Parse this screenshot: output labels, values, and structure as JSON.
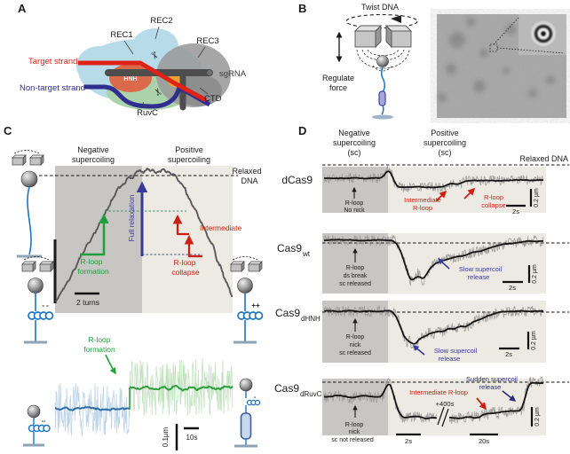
{
  "palette": {
    "region_dark": "#c7c6c3",
    "region_light": "#eceae2",
    "trace_gray": "#59595b",
    "trace_raw": "#9c9c9c",
    "trace_black": "#141414",
    "strand_red": "#e02318",
    "strand_navy": "#2f2d8e",
    "sgRNA_gray": "#4d4d4d",
    "rec_blue": "#b7dbe9",
    "ruvc_green": "#abd3ab",
    "hnh_orange": "#db6a4a",
    "pam_orange": "#f0a230",
    "arrow_green": "#1fa03c",
    "arrow_blue": "#39389b",
    "arrow_red": "#cc2016",
    "arrow_navy": "#2b2b78",
    "dna_blue": "#1d74c0",
    "raw_blue": "#bcd3e8",
    "raw_green": "#c2e2bf",
    "line_blue": "#2e6ea8",
    "line_green": "#2f9e41"
  },
  "panelA": {
    "letter": "A",
    "rec1": "REC1",
    "rec2": "REC2",
    "rec3": "REC3",
    "hnh": "HNH",
    "ruvc": "RuvC",
    "ctd": "CTD",
    "sgrna": "sgRNA",
    "target": "Target strand",
    "nontarget": "Non-target strand"
  },
  "panelB": {
    "letter": "B",
    "twist": "Twist DNA",
    "regulate_1": "Regulate",
    "regulate_2": "force"
  },
  "panelC": {
    "letter": "C",
    "neg_1": "Negative",
    "neg_2": "supercoiling",
    "pos_1": "Positive",
    "pos_2": "supercoiling",
    "relaxed_1": "Relaxed",
    "relaxed_2": "DNA",
    "full_relaxation": "Full relaxation",
    "form_1": "R-loop",
    "form_2": "formation",
    "intermediate": "Intermediate",
    "collapse_1": "R-loop",
    "collapse_2": "collapse",
    "turns": "2 turns",
    "minus_pair": "- -",
    "plus_pair": "++",
    "form2_1": "R-loop",
    "form2_2": "formation",
    "yscale": "0.1µm",
    "tscale": "10s",
    "coil_minus": "--",
    "cas_minus": "-"
  },
  "panelD": {
    "letter": "D",
    "neg_1": "Negative",
    "neg_2": "supercoiling",
    "neg_3": "(sc)",
    "pos_1": "Positive",
    "pos_2": "supercoiling",
    "pos_3": "(sc)",
    "relaxed": "Relaxed DNA",
    "rows": [
      {
        "name": "dCas9",
        "sub": "",
        "black_1": "R-loop",
        "black_2": "No nick",
        "red1_1": "Intermediate",
        "red1_2": "R-loop",
        "red2_1": "R-loop",
        "red2_2": "collapse",
        "t": "2s",
        "y": "0.2 µm"
      },
      {
        "name": "Cas9",
        "sub": "wt",
        "black_1": "R-loop",
        "black_2": "ds break",
        "black_3": "sc released",
        "blue_1": "Slow supercoil",
        "blue_2": "release",
        "t": "2s",
        "y": "0.2 µm"
      },
      {
        "name": "Cas9",
        "sub": "dHNH",
        "black_1": "R-loop",
        "black_2": "nick",
        "black_3": "sc released",
        "blue_1": "Slow supercoil",
        "blue_2": "release",
        "t": "2s",
        "y": "0.2 µm"
      },
      {
        "name": "Cas9",
        "sub": "dRuvC",
        "black_1": "R-loop",
        "black_2": "nick",
        "black_3": "sc not released",
        "red_label": "Intermediate R-loop",
        "navy_1": "Sudden supercoil",
        "navy_2": "release",
        "break_label": "+400s",
        "t": "2s",
        "t2": "20s",
        "y": "0.2 µm"
      }
    ]
  },
  "chart_data": {
    "type": "line",
    "description": "Magnetic-tweezers DNA extension traces; y scales given by scale bars (0.1-0.2 um), x by time/turn scale bars. Keypoints are in figure pixel coordinates.",
    "traces": [
      {
        "group": "c-main",
        "name": "extension vs applied turns",
        "seed": 11,
        "x_range": [
          63,
          262
        ],
        "keypoints": [
          [
            63,
            340
          ],
          [
            76,
            318
          ],
          [
            88,
            296
          ],
          [
            100,
            274
          ],
          [
            112,
            252
          ],
          [
            124,
            230
          ],
          [
            136,
            211
          ],
          [
            146,
            200
          ],
          [
            156,
            195
          ],
          [
            166,
            192
          ],
          [
            176,
            193
          ],
          [
            186,
            193
          ],
          [
            196,
            198
          ],
          [
            204,
            207
          ],
          [
            212,
            221
          ],
          [
            220,
            238
          ],
          [
            228,
            255
          ],
          [
            236,
            272
          ],
          [
            244,
            290
          ],
          [
            252,
            312
          ],
          [
            258,
            326
          ],
          [
            262,
            335
          ]
        ],
        "smooth": {
          "amp": 5,
          "win": 2,
          "step": 0.8,
          "color": "#59595b",
          "width": 1.9
        },
        "spikes": {
          "p": 0.02,
          "amp": 13
        }
      },
      {
        "group": "c-blue",
        "name": "pre R-loop extension",
        "seed": 22,
        "x_range": [
          62,
          146
        ],
        "keypoints": [
          [
            62,
            462
          ],
          [
            146,
            462
          ]
        ],
        "raw": {
          "amp": 30,
          "step": 0.6,
          "color": "#bcd3e8",
          "width": 0.8
        },
        "spikes": {
          "p": 0.05,
          "amp": 14
        },
        "smooth": {
          "amp": 5,
          "win": 3,
          "step": 1,
          "color": "#2e6ea8",
          "width": 2
        }
      },
      {
        "group": "c-green",
        "name": "post R-loop extension",
        "seed": 33,
        "x_range": [
          146,
          262
        ],
        "keypoints": [
          [
            146,
            437
          ],
          [
            262,
            437
          ]
        ],
        "raw": {
          "amp": 33,
          "step": 0.6,
          "color": "#c2e2bf",
          "width": 0.8
        },
        "spikes": {
          "p": 0.05,
          "amp": 14
        },
        "smooth": {
          "amp": 5.5,
          "win": 3,
          "step": 1,
          "color": "#2f9e41",
          "width": 2
        }
      },
      {
        "group": "d-dcas9",
        "name": "dCas9 trace",
        "seed": 44,
        "x_range": [
          365,
          612
        ],
        "keypoints": [
          [
            365,
            201
          ],
          [
            430,
            201
          ],
          [
            434,
            197
          ],
          [
            436,
            191
          ],
          [
            438,
            188
          ],
          [
            440,
            193
          ],
          [
            443,
            203
          ],
          [
            446,
            211
          ],
          [
            501,
            211
          ],
          [
            504,
            207
          ],
          [
            520,
            207
          ],
          [
            523,
            204
          ],
          [
            612,
            203
          ]
        ],
        "raw": {
          "amp": 5.5,
          "step": 0.7,
          "color": "#9c9c9c",
          "width": 0.8
        },
        "smooth": {
          "amp": 1.6,
          "win": 4,
          "step": 1,
          "color": "#141414",
          "width": 1.8
        }
      },
      {
        "group": "d-wt",
        "name": "Cas9 wt trace",
        "seed": 55,
        "x_range": [
          365,
          612
        ],
        "keypoints": [
          [
            365,
            271
          ],
          [
            443,
            271
          ],
          [
            448,
            276
          ],
          [
            452,
            284
          ],
          [
            456,
            297
          ],
          [
            459,
            308
          ],
          [
            462,
            316
          ],
          [
            465,
            319
          ],
          [
            468,
            312
          ],
          [
            471,
            308
          ],
          [
            474,
            315
          ],
          [
            477,
            318
          ],
          [
            481,
            308
          ],
          [
            486,
            300
          ],
          [
            492,
            296
          ],
          [
            500,
            293
          ],
          [
            510,
            291
          ],
          [
            522,
            288
          ],
          [
            535,
            284
          ],
          [
            548,
            281
          ],
          [
            562,
            277
          ],
          [
            578,
            274
          ],
          [
            595,
            272
          ],
          [
            612,
            272
          ]
        ],
        "raw": {
          "amp": 6,
          "step": 0.7,
          "color": "#9c9c9c",
          "width": 0.8
        },
        "smooth": {
          "amp": 1.7,
          "win": 4,
          "step": 1,
          "color": "#141414",
          "width": 1.8
        }
      },
      {
        "group": "d-dhnh",
        "name": "Cas9 dHNH trace",
        "seed": 66,
        "x_range": [
          365,
          612
        ],
        "keypoints": [
          [
            365,
            351
          ],
          [
            440,
            351
          ],
          [
            445,
            354
          ],
          [
            449,
            362
          ],
          [
            452,
            372
          ],
          [
            455,
            381
          ],
          [
            458,
            386
          ],
          [
            461,
            383
          ],
          [
            464,
            389
          ],
          [
            467,
            391
          ],
          [
            470,
            386
          ],
          [
            474,
            379
          ],
          [
            478,
            382
          ],
          [
            483,
            375
          ],
          [
            488,
            377
          ],
          [
            494,
            372
          ],
          [
            500,
            375
          ],
          [
            506,
            369
          ],
          [
            512,
            372
          ],
          [
            518,
            367
          ],
          [
            525,
            369
          ],
          [
            532,
            364
          ],
          [
            540,
            360
          ],
          [
            548,
            357
          ],
          [
            556,
            354
          ],
          [
            566,
            352
          ],
          [
            580,
            351
          ],
          [
            612,
            351
          ]
        ],
        "raw": {
          "amp": 6,
          "step": 0.7,
          "color": "#9c9c9c",
          "width": 0.8
        },
        "smooth": {
          "amp": 1.7,
          "win": 4,
          "step": 1,
          "color": "#141414",
          "width": 1.8
        }
      },
      {
        "group": "d-druvc",
        "name": "Cas9 dRuvC trace",
        "seed": 77,
        "x_range": [
          365,
          612
        ],
        "gaps": [
          [
            492,
            506
          ]
        ],
        "keypoints": [
          [
            365,
            448
          ],
          [
            380,
            446
          ],
          [
            395,
            449
          ],
          [
            410,
            446
          ],
          [
            425,
            448
          ],
          [
            431,
            447
          ],
          [
            434,
            440
          ],
          [
            436,
            430
          ],
          [
            438,
            428
          ],
          [
            440,
            434
          ],
          [
            443,
            444
          ],
          [
            446,
            458
          ],
          [
            450,
            468
          ],
          [
            455,
            471
          ],
          [
            470,
            470
          ],
          [
            480,
            472
          ],
          [
            492,
            471
          ],
          [
            506,
            471
          ],
          [
            515,
            472
          ],
          [
            527,
            470
          ],
          [
            538,
            471
          ],
          [
            543,
            469
          ],
          [
            546,
            465
          ],
          [
            552,
            468
          ],
          [
            556,
            464
          ],
          [
            560,
            467
          ],
          [
            565,
            463
          ],
          [
            570,
            466
          ],
          [
            575,
            462
          ],
          [
            580,
            465
          ],
          [
            585,
            463
          ],
          [
            589,
            464
          ],
          [
            590,
            458
          ],
          [
            592,
            444
          ],
          [
            594,
            433
          ],
          [
            598,
            431
          ],
          [
            604,
            432
          ],
          [
            612,
            431
          ]
        ],
        "raw": {
          "amp": 6.5,
          "step": 0.7,
          "color": "#9c9c9c",
          "width": 0.8
        },
        "smooth": {
          "amp": 1.7,
          "win": 4,
          "step": 1,
          "color": "#141414",
          "width": 1.8
        }
      }
    ]
  }
}
